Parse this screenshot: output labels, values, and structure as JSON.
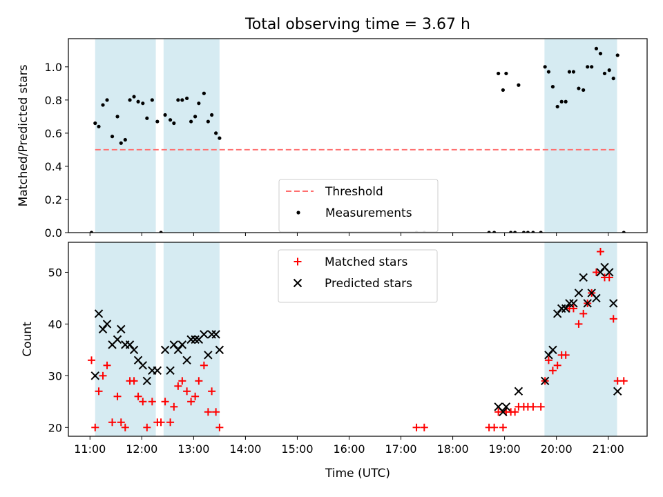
{
  "figure": {
    "title": "Total observing time = 3.67 h",
    "xlabel": "Time (UTC)",
    "x_ticks": [
      "11:00",
      "12:00",
      "13:00",
      "14:00",
      "15:00",
      "16:00",
      "17:00",
      "18:00",
      "19:00",
      "20:00",
      "21:00"
    ]
  },
  "colors": {
    "shade": "#add8e6",
    "threshold": "#ff6f6f",
    "matched": "#ff0000",
    "predicted": "#000000",
    "measurement": "#000000"
  },
  "chart_data": [
    {
      "type": "scatter",
      "ylabel": "Matched/Predicted stars",
      "ylim": [
        0,
        1.17
      ],
      "y_ticks": [
        0.0,
        0.2,
        0.4,
        0.6,
        0.8,
        1.0
      ],
      "xlim": [
        "10:35",
        "21:45"
      ],
      "x_unit": "UTC time (decimal hours)",
      "shaded_intervals": [
        [
          11.1,
          12.27
        ],
        [
          12.42,
          13.5
        ],
        [
          19.77,
          21.17
        ]
      ],
      "threshold": {
        "name": "Threshold",
        "y": 0.5,
        "x_range": [
          11.1,
          21.17
        ]
      },
      "series": [
        {
          "name": "Measurements",
          "marker": "dot",
          "points": [
            [
              11.03,
              0.0
            ],
            [
              11.1,
              0.66
            ],
            [
              11.17,
              0.64
            ],
            [
              11.25,
              0.77
            ],
            [
              11.33,
              0.8
            ],
            [
              11.43,
              0.58
            ],
            [
              11.53,
              0.7
            ],
            [
              11.6,
              0.54
            ],
            [
              11.68,
              0.56
            ],
            [
              11.77,
              0.8
            ],
            [
              11.85,
              0.82
            ],
            [
              11.93,
              0.79
            ],
            [
              12.02,
              0.78
            ],
            [
              12.1,
              0.69
            ],
            [
              12.2,
              0.8
            ],
            [
              12.3,
              0.67
            ],
            [
              12.37,
              0.0
            ],
            [
              12.45,
              0.71
            ],
            [
              12.55,
              0.68
            ],
            [
              12.62,
              0.66
            ],
            [
              12.7,
              0.8
            ],
            [
              12.78,
              0.8
            ],
            [
              12.87,
              0.81
            ],
            [
              12.95,
              0.67
            ],
            [
              13.03,
              0.7
            ],
            [
              13.1,
              0.78
            ],
            [
              13.2,
              0.84
            ],
            [
              13.28,
              0.67
            ],
            [
              13.35,
              0.71
            ],
            [
              13.43,
              0.6
            ],
            [
              13.5,
              0.57
            ],
            [
              17.3,
              0.0
            ],
            [
              17.45,
              0.0
            ],
            [
              18.7,
              0.0
            ],
            [
              18.8,
              0.0
            ],
            [
              18.88,
              0.96
            ],
            [
              18.97,
              0.86
            ],
            [
              19.03,
              0.96
            ],
            [
              19.12,
              0.0
            ],
            [
              19.2,
              0.0
            ],
            [
              19.27,
              0.89
            ],
            [
              19.37,
              0.0
            ],
            [
              19.45,
              0.0
            ],
            [
              19.55,
              0.0
            ],
            [
              19.7,
              0.0
            ],
            [
              19.78,
              1.0
            ],
            [
              19.85,
              0.97
            ],
            [
              19.93,
              0.88
            ],
            [
              20.02,
              0.76
            ],
            [
              20.1,
              0.79
            ],
            [
              20.18,
              0.79
            ],
            [
              20.25,
              0.97
            ],
            [
              20.33,
              0.97
            ],
            [
              20.43,
              0.87
            ],
            [
              20.52,
              0.86
            ],
            [
              20.6,
              1.0
            ],
            [
              20.68,
              1.0
            ],
            [
              20.77,
              1.11
            ],
            [
              20.85,
              1.08
            ],
            [
              20.93,
              0.96
            ],
            [
              21.02,
              0.98
            ],
            [
              21.1,
              0.93
            ],
            [
              21.18,
              1.07
            ],
            [
              21.3,
              0.0
            ]
          ]
        }
      ]
    },
    {
      "type": "scatter",
      "ylabel": "Count",
      "ylim": [
        18.3,
        55.8
      ],
      "y_ticks": [
        20,
        30,
        40,
        50
      ],
      "xlim": [
        "10:35",
        "21:45"
      ],
      "x_unit": "UTC time (decimal hours)",
      "shaded_intervals": [
        [
          11.1,
          12.27
        ],
        [
          12.42,
          13.5
        ],
        [
          19.77,
          21.17
        ]
      ],
      "series": [
        {
          "name": "Matched stars",
          "marker": "plus",
          "points": [
            [
              11.03,
              33
            ],
            [
              11.1,
              20
            ],
            [
              11.17,
              27
            ],
            [
              11.25,
              30
            ],
            [
              11.33,
              32
            ],
            [
              11.43,
              21
            ],
            [
              11.53,
              26
            ],
            [
              11.6,
              21
            ],
            [
              11.68,
              20
            ],
            [
              11.77,
              29
            ],
            [
              11.85,
              29
            ],
            [
              11.93,
              26
            ],
            [
              12.02,
              25
            ],
            [
              12.1,
              20
            ],
            [
              12.2,
              25
            ],
            [
              12.3,
              21
            ],
            [
              12.37,
              21
            ],
            [
              12.45,
              25
            ],
            [
              12.55,
              21
            ],
            [
              12.62,
              24
            ],
            [
              12.7,
              28
            ],
            [
              12.78,
              29
            ],
            [
              12.87,
              27
            ],
            [
              12.95,
              25
            ],
            [
              13.03,
              26
            ],
            [
              13.1,
              29
            ],
            [
              13.2,
              32
            ],
            [
              13.28,
              23
            ],
            [
              13.35,
              27
            ],
            [
              13.43,
              23
            ],
            [
              13.5,
              20
            ],
            [
              17.3,
              20
            ],
            [
              17.45,
              20
            ],
            [
              18.7,
              20
            ],
            [
              18.8,
              20
            ],
            [
              18.88,
              23
            ],
            [
              18.97,
              20
            ],
            [
              19.03,
              23
            ],
            [
              19.12,
              23
            ],
            [
              19.2,
              23
            ],
            [
              19.27,
              24
            ],
            [
              19.37,
              24
            ],
            [
              19.45,
              24
            ],
            [
              19.55,
              24
            ],
            [
              19.7,
              24
            ],
            [
              19.78,
              29
            ],
            [
              19.85,
              33
            ],
            [
              19.93,
              31
            ],
            [
              20.02,
              32
            ],
            [
              20.1,
              34
            ],
            [
              20.18,
              34
            ],
            [
              20.25,
              43
            ],
            [
              20.33,
              43
            ],
            [
              20.43,
              40
            ],
            [
              20.52,
              42
            ],
            [
              20.6,
              44
            ],
            [
              20.68,
              46
            ],
            [
              20.77,
              50
            ],
            [
              20.85,
              54
            ],
            [
              20.93,
              49
            ],
            [
              21.02,
              49
            ],
            [
              21.1,
              41
            ],
            [
              21.18,
              29
            ],
            [
              21.3,
              29
            ]
          ]
        },
        {
          "name": "Predicted stars",
          "marker": "x",
          "points": [
            [
              11.1,
              30
            ],
            [
              11.17,
              42
            ],
            [
              11.25,
              39
            ],
            [
              11.33,
              40
            ],
            [
              11.43,
              36
            ],
            [
              11.53,
              37
            ],
            [
              11.6,
              39
            ],
            [
              11.68,
              36
            ],
            [
              11.77,
              36
            ],
            [
              11.85,
              35
            ],
            [
              11.93,
              33
            ],
            [
              12.02,
              32
            ],
            [
              12.1,
              29
            ],
            [
              12.2,
              31
            ],
            [
              12.3,
              31
            ],
            [
              12.45,
              35
            ],
            [
              12.55,
              31
            ],
            [
              12.62,
              36
            ],
            [
              12.7,
              35
            ],
            [
              12.78,
              36
            ],
            [
              12.87,
              33
            ],
            [
              12.95,
              37
            ],
            [
              13.03,
              37
            ],
            [
              13.1,
              37
            ],
            [
              13.2,
              38
            ],
            [
              13.28,
              34
            ],
            [
              13.35,
              38
            ],
            [
              13.43,
              38
            ],
            [
              13.5,
              35
            ],
            [
              18.88,
              24
            ],
            [
              18.97,
              23
            ],
            [
              19.03,
              24
            ],
            [
              19.27,
              27
            ],
            [
              19.78,
              29
            ],
            [
              19.85,
              34
            ],
            [
              19.93,
              35
            ],
            [
              20.02,
              42
            ],
            [
              20.1,
              43
            ],
            [
              20.18,
              43
            ],
            [
              20.25,
              44
            ],
            [
              20.33,
              44
            ],
            [
              20.43,
              46
            ],
            [
              20.52,
              49
            ],
            [
              20.6,
              44
            ],
            [
              20.68,
              46
            ],
            [
              20.77,
              45
            ],
            [
              20.85,
              50
            ],
            [
              20.93,
              51
            ],
            [
              21.02,
              50
            ],
            [
              21.1,
              44
            ],
            [
              21.18,
              27
            ]
          ]
        }
      ]
    }
  ]
}
